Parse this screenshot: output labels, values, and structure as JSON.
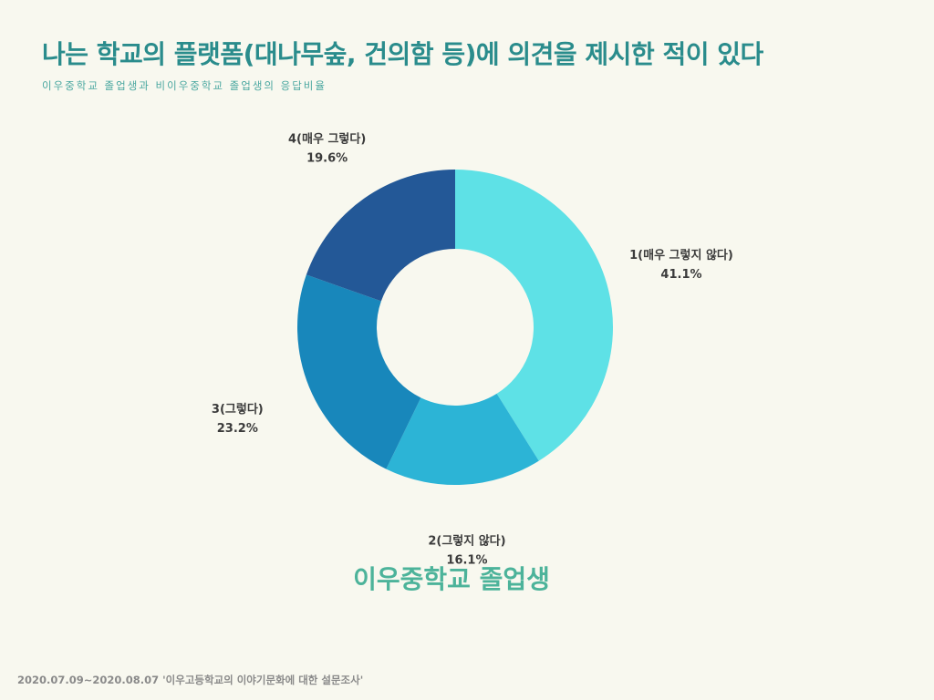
{
  "header": {
    "title": "나는 학교의 플랫폼(대나무숲, 건의함 등)에 의견을 제시한 적이 있다",
    "subtitle": "이우중학교 졸업생과 비이우중학교 졸업생의 응답비율"
  },
  "chart_data": {
    "type": "pie",
    "variant": "donut",
    "title": "이우중학교 졸업생",
    "start_angle_deg": 0,
    "direction": "clockwise",
    "slices": [
      {
        "label": "1(매우 그렇지 않다)",
        "value": 41.1,
        "value_label": "41.1%",
        "color": "#5ee1e6"
      },
      {
        "label": "2(그렇지 않다)",
        "value": 16.1,
        "value_label": "16.1%",
        "color": "#2cb4d6"
      },
      {
        "label": "3(그렇다)",
        "value": 23.2,
        "value_label": "23.2%",
        "color": "#1887bb"
      },
      {
        "label": "4(매우 그렇다)",
        "value": 19.6,
        "value_label": "19.6%",
        "color": "#235897"
      }
    ]
  },
  "caption": "이우중학교 졸업생",
  "footer": "2020.07.09~2020.08.07 '이우고등학교의 이야기문화에 대한 설문조사'"
}
